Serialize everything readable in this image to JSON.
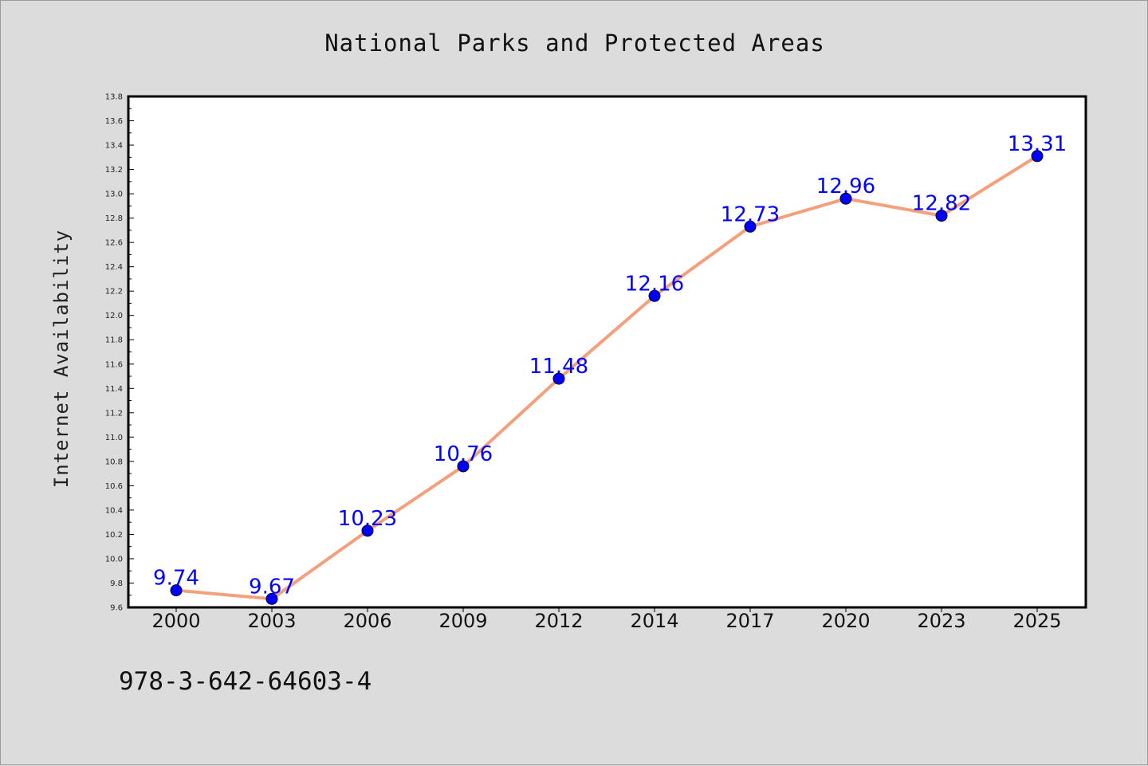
{
  "chart_data": {
    "type": "line",
    "title": "National Parks and Protected Areas",
    "xlabel": "",
    "ylabel": "Internet Availability",
    "categories": [
      "2000",
      "2003",
      "2006",
      "2009",
      "2012",
      "2014",
      "2017",
      "2020",
      "2023",
      "2025"
    ],
    "series": [
      {
        "values": [
          9.74,
          9.67,
          10.23,
          10.76,
          11.48,
          12.16,
          12.73,
          12.96,
          12.82,
          13.31
        ],
        "data_labels": [
          "9.74",
          "9.67",
          "10.23",
          "10.76",
          "11.48",
          "12.16",
          "12.73",
          "12.96",
          "12.82",
          "13.31"
        ],
        "line_color": "#f4a07c",
        "marker_color": "#0000ff"
      }
    ],
    "ylim": [
      9.6,
      13.8
    ],
    "yticks": [
      "9.6",
      "9.8",
      "10.0",
      "10.2",
      "10.4",
      "10.6",
      "10.8",
      "11.0",
      "11.2",
      "11.4",
      "11.6",
      "11.8",
      "12.0",
      "12.2",
      "12.4",
      "12.6",
      "12.8",
      "13.0",
      "13.2",
      "13.4",
      "13.6",
      "13.8"
    ],
    "grid": false,
    "legend": "none",
    "background_color": "#dcdcdc",
    "plot_background": "#ffffff"
  },
  "annotation": "978-3-642-64603-4"
}
